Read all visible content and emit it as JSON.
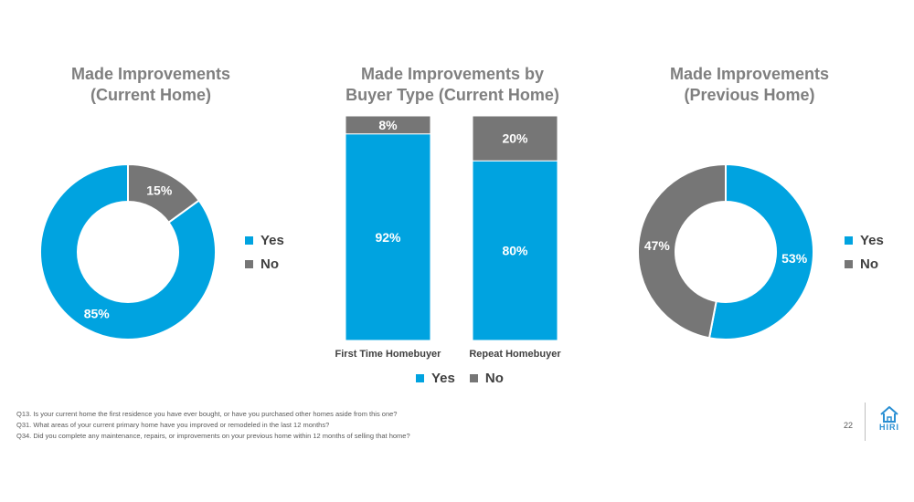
{
  "colors": {
    "yes": "#00a3e0",
    "no": "#767676",
    "title": "#7f7f7f"
  },
  "legend": {
    "yes": "Yes",
    "no": "No"
  },
  "chart_data": [
    {
      "type": "pie",
      "donut": true,
      "title_lines": [
        "Made Improvements",
        "(Current Home)"
      ],
      "slices": [
        {
          "label": "Yes",
          "value": 85,
          "display": "85%"
        },
        {
          "label": "No",
          "value": 15,
          "display": "15%"
        }
      ],
      "legend_position": "right"
    },
    {
      "type": "bar",
      "stacked": true,
      "title_lines": [
        "Made Improvements by",
        "Buyer Type (Current Home)"
      ],
      "categories": [
        "First Time Homebuyer",
        "Repeat Homebuyer"
      ],
      "series": [
        {
          "name": "Yes",
          "values": [
            92,
            80
          ],
          "labels": [
            "92%",
            "80%"
          ]
        },
        {
          "name": "No",
          "values": [
            8,
            20
          ],
          "labels": [
            "8%",
            "20%"
          ]
        }
      ],
      "ylim": [
        0,
        100
      ],
      "legend_position": "bottom"
    },
    {
      "type": "pie",
      "donut": true,
      "title_lines": [
        "Made Improvements",
        "(Previous Home)"
      ],
      "slices": [
        {
          "label": "Yes",
          "value": 53,
          "display": "53%"
        },
        {
          "label": "No",
          "value": 47,
          "display": "47%"
        }
      ],
      "legend_position": "right"
    }
  ],
  "footnotes": [
    "Q13. Is your current home the first residence you have ever bought, or have you purchased other homes aside from this one?",
    "Q31. What areas of your current primary home have you improved or remodeled in the last 12 months?",
    "Q34. Did you complete any maintenance, repairs, or improvements on your previous home within 12 months of selling that home?"
  ],
  "page_number": "22",
  "logo": {
    "text": "HIRI",
    "icon": "house-icon"
  }
}
